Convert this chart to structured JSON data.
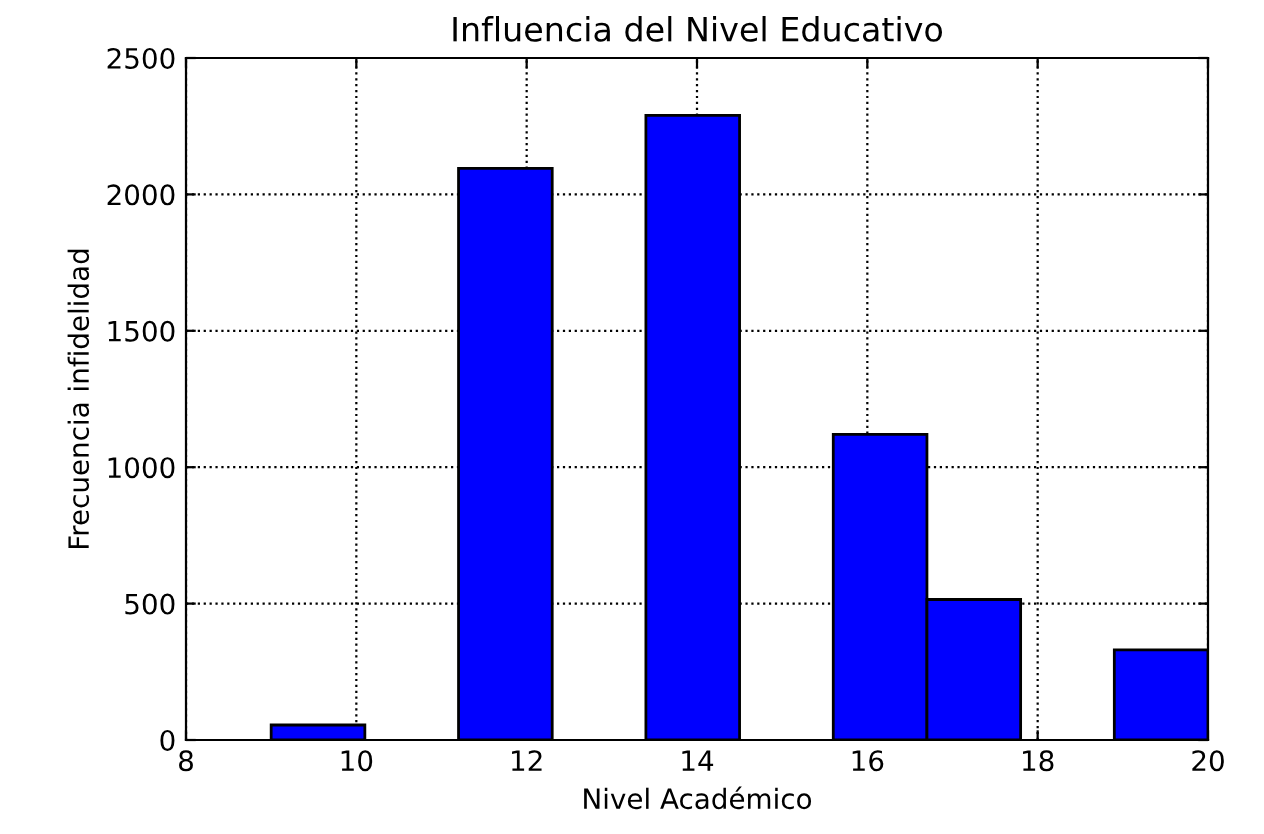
{
  "chart_data": {
    "type": "histogram",
    "title": "Influencia del Nivel Educativo",
    "xlabel": "Nivel Académico",
    "ylabel": "Frecuencia infidelidad",
    "bins": [
      9,
      10.1,
      11.2,
      12.3,
      13.4,
      14.5,
      15.6,
      16.7,
      17.8,
      18.9,
      20
    ],
    "values": [
      55,
      0,
      2095,
      0,
      2290,
      0,
      1120,
      515,
      0,
      330
    ],
    "color": "#0000ff",
    "xlim": [
      8,
      20
    ],
    "xticks": [
      8,
      10,
      12,
      14,
      16,
      18,
      20
    ],
    "ylim": [
      0,
      2500
    ],
    "yticks": [
      0,
      500,
      1000,
      1500,
      2000,
      2500
    ],
    "grid": true
  }
}
